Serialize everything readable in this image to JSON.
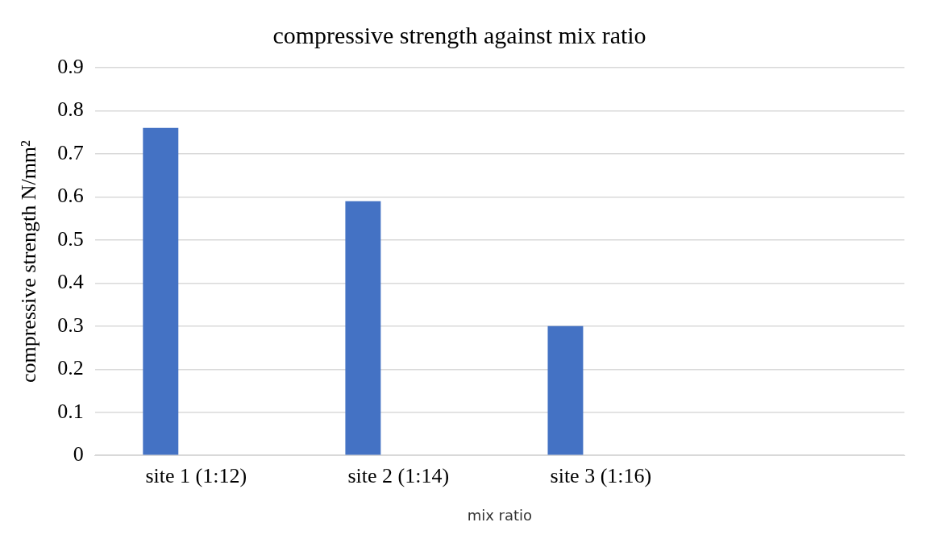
{
  "chart_data": {
    "type": "bar",
    "title": "compressive strength against mix ratio",
    "xlabel": "mix ratio",
    "ylabel": "compressive strength N/mm²",
    "categories": [
      "site 1 (1:12)",
      "site 2 (1:14)",
      "site 3 (1:16)",
      null
    ],
    "series": [
      {
        "color": "#4472c4",
        "values": [
          0.76,
          0.59,
          0.3,
          null
        ]
      },
      {
        "color": "#ed7d31",
        "values": [
          null,
          null,
          null,
          null
        ]
      }
    ],
    "ylim": [
      0,
      0.9
    ],
    "yticks": [
      0,
      0.1,
      0.2,
      0.3,
      0.4,
      0.5,
      0.6,
      0.7,
      0.8,
      0.9
    ],
    "grid": "y",
    "legend": false
  }
}
